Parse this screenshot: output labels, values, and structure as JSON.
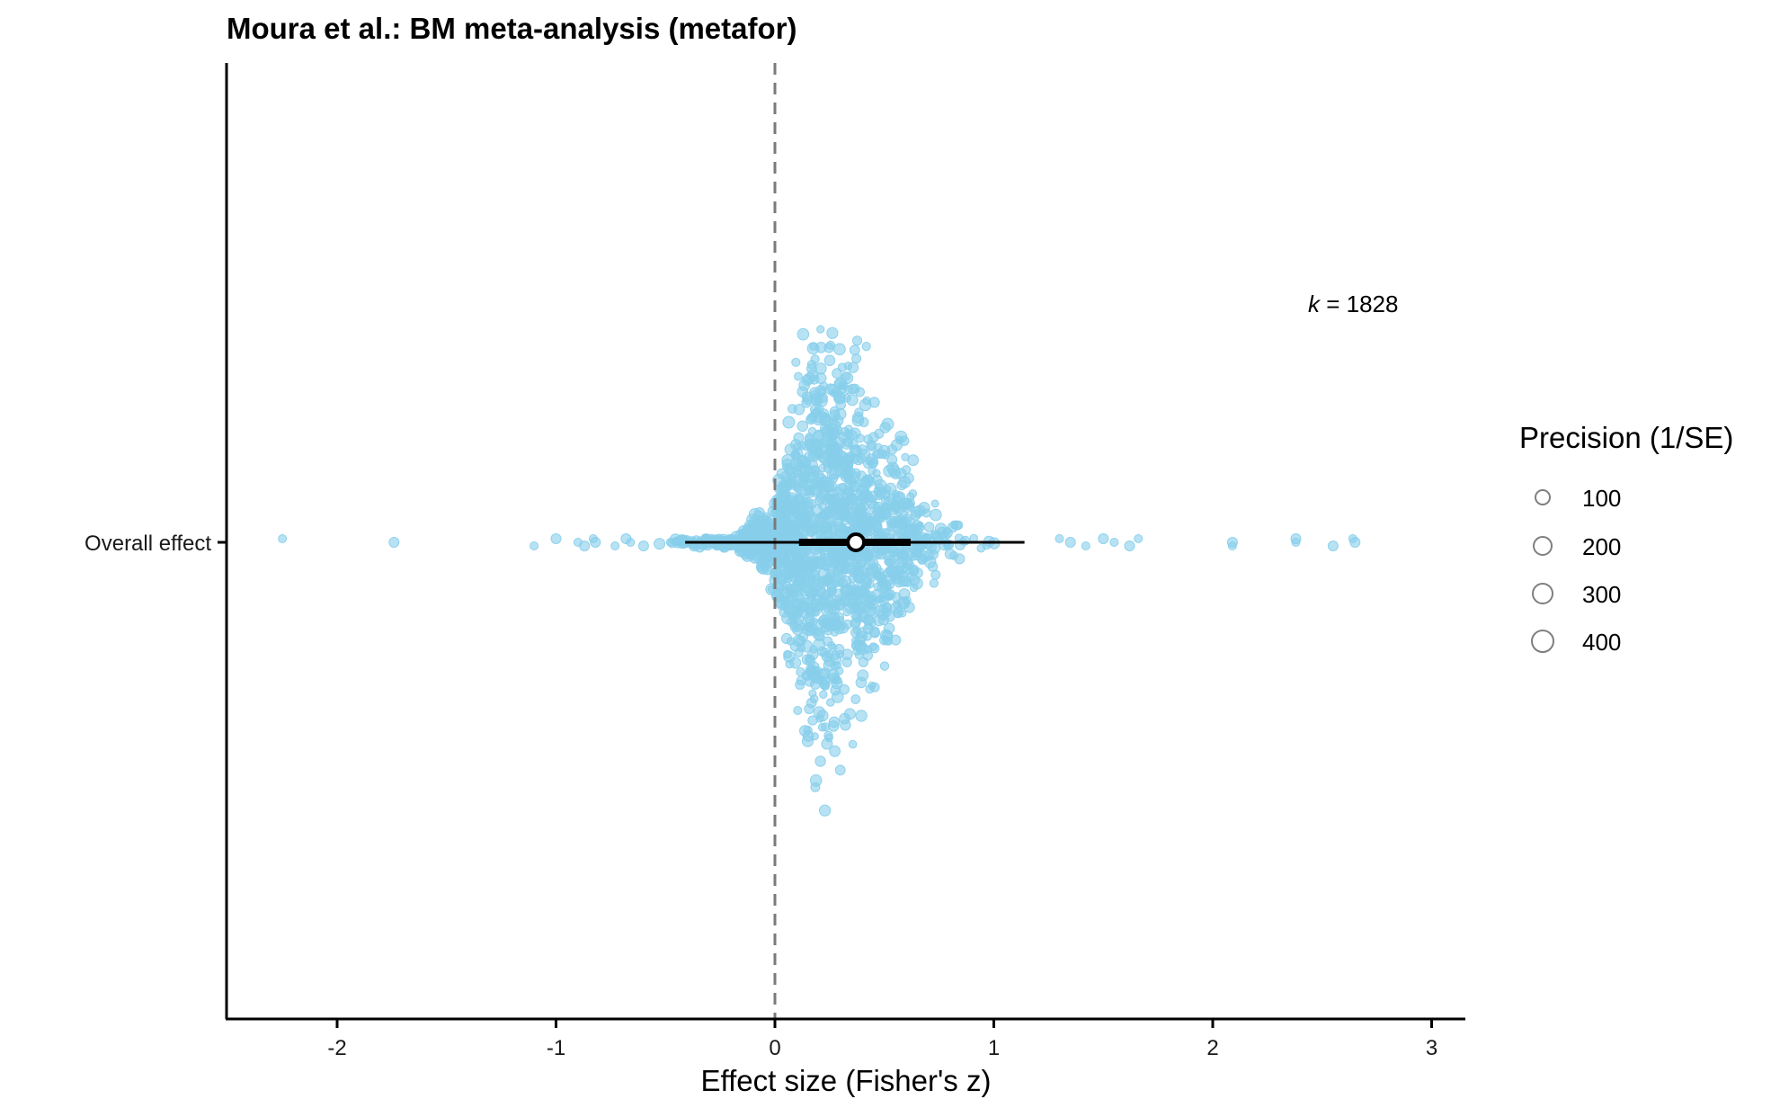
{
  "chart_data": {
    "type": "scatter",
    "subtype": "orchard plot",
    "title": "Moura et al.: BM meta-analysis (metafor)",
    "xlabel": "Effect size (Fisher's z)",
    "ylabel": "",
    "xlim": [
      -2.5,
      3.15
    ],
    "x_ticks": [
      "-2",
      "-1",
      "0",
      "1",
      "2",
      "3"
    ],
    "categories": [
      "Overall effect"
    ],
    "reference_line": {
      "x": 0,
      "style": "dashed",
      "color": "#7a7a7a"
    },
    "annotation": {
      "italic": "k",
      "text": " = 1828"
    },
    "k": 1828,
    "point_color": "#87ceeb",
    "point_opacity": 0.6,
    "estimate": {
      "value": 0.37,
      "ci": [
        0.11,
        0.62
      ],
      "pi": [
        -0.41,
        1.14
      ]
    },
    "outlying_points": [
      -2.25,
      -1.74,
      -1.1,
      -1.0,
      -0.9,
      -0.87,
      -0.83,
      -0.82,
      -0.73,
      -0.68,
      -0.66,
      -0.6,
      1.3,
      1.35,
      1.42,
      1.5,
      1.55,
      1.62,
      1.66,
      2.09,
      2.09,
      2.38,
      2.38,
      2.55,
      2.64,
      2.65
    ],
    "grid": false,
    "legend": {
      "title": "Precision (1/SE)",
      "position": "right",
      "entries": [
        "100",
        "200",
        "300",
        "400"
      ]
    }
  }
}
